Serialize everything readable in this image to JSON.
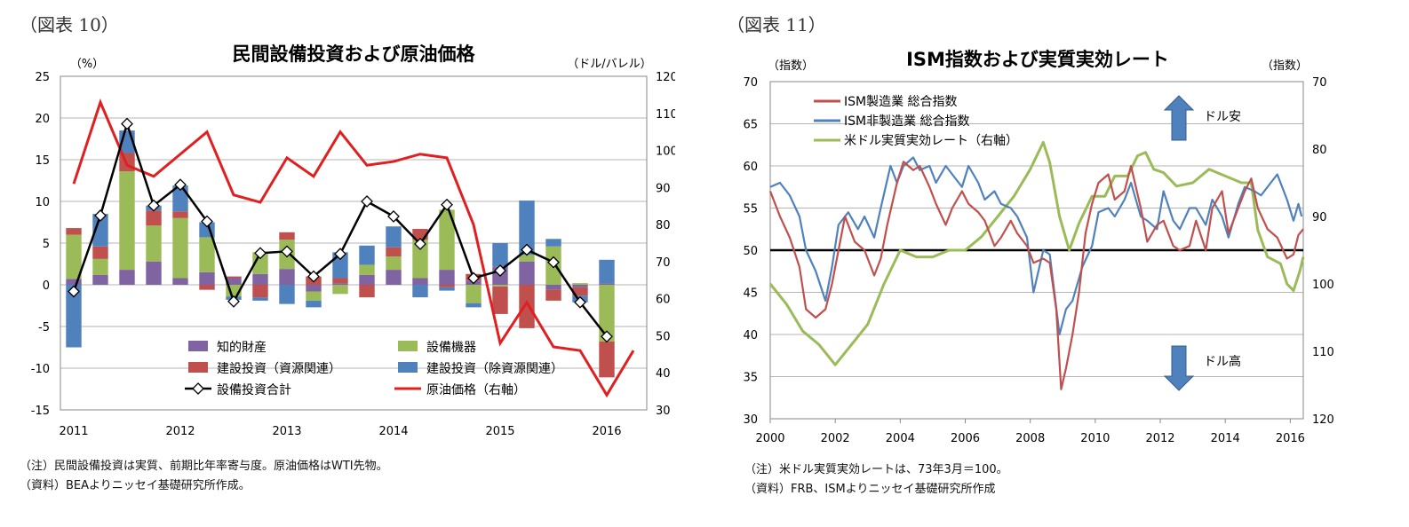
{
  "left_panel": {
    "figure_label": "（図表 10）",
    "notes": [
      "（注）民間設備投資は実質、前期比年率寄与度。原油価格はWTI先物。",
      "（資料）BEAよりニッセイ基礎研究所作成。"
    ]
  },
  "right_panel": {
    "figure_label": "（図表 11）",
    "notes": [
      "（注）米ドル実質実効レートは、73年3月＝100。",
      "（資料）FRB、ISMよりニッセイ基礎研究所作成"
    ]
  },
  "chart_data": [
    {
      "type": "bar",
      "title": "民間設備投資および原油価格",
      "ylabel": "（%）",
      "y2label": "（ドル/バレル）",
      "ylim": [
        -15,
        25
      ],
      "y2lim": [
        30,
        120
      ],
      "yticks": [
        25,
        20,
        15,
        10,
        5,
        0,
        -5,
        -10,
        -15
      ],
      "y2ticks": [
        120,
        110,
        100,
        90,
        80,
        70,
        60,
        50,
        40,
        30
      ],
      "x_tick_labels": [
        "2011",
        "2012",
        "2013",
        "2014",
        "2015",
        "2016"
      ],
      "quarters": [
        "2011Q1",
        "2011Q2",
        "2011Q3",
        "2011Q4",
        "2012Q1",
        "2012Q2",
        "2012Q3",
        "2012Q4",
        "2013Q1",
        "2013Q2",
        "2013Q3",
        "2013Q4",
        "2014Q1",
        "2014Q2",
        "2014Q3",
        "2014Q4",
        "2015Q1",
        "2015Q2",
        "2015Q3",
        "2015Q4",
        "2016Q1",
        "2016Q2"
      ],
      "series": [
        {
          "name": "知的財産",
          "kind": "bar",
          "color": "#8064a2",
          "values": [
            0.7,
            1.2,
            1.8,
            2.8,
            0.8,
            1.5,
            0.8,
            1.3,
            1.9,
            -0.8,
            0.2,
            1.2,
            1.8,
            0.8,
            1.8,
            0.5,
            2.2,
            2.8,
            -0.6,
            -0.3,
            0.2
          ]
        },
        {
          "name": "設備機器",
          "kind": "bar",
          "color": "#9bbb59",
          "values": [
            5.3,
            1.9,
            11.8,
            4.3,
            7.2,
            4.2,
            -1.4,
            2.6,
            3.5,
            -1.1,
            -1.1,
            1.2,
            1.6,
            4.6,
            7.2,
            -2.2,
            -0.2,
            0.8,
            4.6,
            0.2,
            -6.8
          ]
        },
        {
          "name": "建設投資（資源関連）",
          "kind": "bar",
          "color": "#c0504d",
          "values": [
            0.8,
            1.5,
            2.2,
            1.8,
            0.8,
            -0.6,
            0.2,
            -1.5,
            0.9,
            1.0,
            0.6,
            -1.5,
            1.1,
            1.3,
            -0.3,
            0.8,
            -3.3,
            -5.2,
            -1.3,
            -1.0,
            -4.3
          ]
        },
        {
          "name": "建設投資（除資源関連）",
          "kind": "bar",
          "color": "#4f81bd",
          "values": [
            -7.5,
            3.9,
            2.7,
            0.6,
            3.1,
            1.8,
            -0.4,
            -0.4,
            -2.3,
            -0.8,
            3.1,
            2.3,
            2.5,
            -1.5,
            -0.4,
            -0.5,
            2.8,
            6.5,
            0.9,
            -0.8,
            2.8
          ]
        },
        {
          "name": "設備投資合計",
          "kind": "line-marker",
          "color": "#000000",
          "values": [
            -0.8,
            8.3,
            19.3,
            9.5,
            12.0,
            7.6,
            -2.0,
            3.8,
            4.0,
            1.0,
            3.7,
            10.0,
            8.2,
            4.9,
            9.6,
            0.8,
            1.7,
            4.2,
            2.7,
            -2.1,
            -6.2
          ]
        },
        {
          "name": "原油価格（右軸）",
          "kind": "line",
          "color": "#e02020",
          "values": [
            91,
            113,
            96,
            93,
            99,
            105,
            88,
            86,
            98,
            93,
            105,
            96,
            97,
            99,
            98,
            80,
            48,
            59,
            47,
            46,
            34,
            46
          ]
        }
      ],
      "legend": [
        {
          "label": "知的財産",
          "color": "#8064a2",
          "kind": "bar"
        },
        {
          "label": "設備機器",
          "color": "#9bbb59",
          "kind": "bar"
        },
        {
          "label": "建設投資（資源関連）",
          "color": "#c0504d",
          "kind": "bar"
        },
        {
          "label": "建設投資（除資源関連）",
          "color": "#4f81bd",
          "kind": "bar"
        },
        {
          "label": "設備投資合計",
          "color": "#000000",
          "kind": "line-marker"
        },
        {
          "label": "原油価格（右軸）",
          "color": "#e02020",
          "kind": "line"
        }
      ],
      "legend_position": "lower-center"
    },
    {
      "type": "line",
      "title": "ISM指数および実質実効レート",
      "ylabel": "（指数）",
      "y2label": "（指数）",
      "ylim": [
        30,
        70
      ],
      "y2lim": [
        120,
        70
      ],
      "y2_inverted": true,
      "yticks": [
        70,
        65,
        60,
        55,
        50,
        45,
        40,
        35,
        30
      ],
      "y2ticks": [
        70,
        80,
        90,
        100,
        110,
        120
      ],
      "x_range": [
        2000,
        2016.4
      ],
      "x_tick_labels": [
        "2000",
        "2002",
        "2004",
        "2006",
        "2008",
        "2010",
        "2012",
        "2014",
        "2016"
      ],
      "reference_line": 50,
      "arrow_up_label": "ドル安",
      "arrow_down_label": "ドル高",
      "series": [
        {
          "name": "ISM製造業 総合指数",
          "color": "#c0504d",
          "points": [
            [
              2000.0,
              57.0
            ],
            [
              2000.3,
              54.0
            ],
            [
              2000.6,
              51.5
            ],
            [
              2000.9,
              48.0
            ],
            [
              2001.1,
              43.0
            ],
            [
              2001.4,
              42.0
            ],
            [
              2001.7,
              43.0
            ],
            [
              2001.9,
              46.0
            ],
            [
              2002.1,
              50.0
            ],
            [
              2002.3,
              54.0
            ],
            [
              2002.6,
              51.0
            ],
            [
              2002.9,
              50.0
            ],
            [
              2003.2,
              47.0
            ],
            [
              2003.4,
              49.0
            ],
            [
              2003.6,
              53.0
            ],
            [
              2003.9,
              58.0
            ],
            [
              2004.1,
              60.5
            ],
            [
              2004.4,
              59.5
            ],
            [
              2004.6,
              60.0
            ],
            [
              2004.9,
              57.5
            ],
            [
              2005.1,
              55.5
            ],
            [
              2005.4,
              53.0
            ],
            [
              2005.6,
              55.0
            ],
            [
              2005.9,
              57.0
            ],
            [
              2006.1,
              55.5
            ],
            [
              2006.4,
              54.5
            ],
            [
              2006.6,
              53.5
            ],
            [
              2006.9,
              50.5
            ],
            [
              2007.1,
              51.5
            ],
            [
              2007.4,
              53.5
            ],
            [
              2007.6,
              52.0
            ],
            [
              2007.9,
              50.5
            ],
            [
              2008.1,
              48.5
            ],
            [
              2008.4,
              49.0
            ],
            [
              2008.6,
              48.5
            ],
            [
              2008.8,
              43.0
            ],
            [
              2008.95,
              33.5
            ],
            [
              2009.1,
              36.0
            ],
            [
              2009.3,
              40.0
            ],
            [
              2009.5,
              45.0
            ],
            [
              2009.7,
              52.0
            ],
            [
              2009.9,
              55.5
            ],
            [
              2010.1,
              58.0
            ],
            [
              2010.4,
              59.0
            ],
            [
              2010.6,
              56.0
            ],
            [
              2010.9,
              57.0
            ],
            [
              2011.1,
              60.0
            ],
            [
              2011.4,
              55.0
            ],
            [
              2011.6,
              51.0
            ],
            [
              2011.9,
              53.0
            ],
            [
              2012.1,
              53.5
            ],
            [
              2012.4,
              50.5
            ],
            [
              2012.6,
              50.0
            ],
            [
              2012.9,
              50.5
            ],
            [
              2013.1,
              53.5
            ],
            [
              2013.4,
              50.0
            ],
            [
              2013.6,
              55.0
            ],
            [
              2013.9,
              57.0
            ],
            [
              2014.1,
              52.0
            ],
            [
              2014.4,
              55.0
            ],
            [
              2014.6,
              57.0
            ],
            [
              2014.8,
              58.5
            ],
            [
              2015.0,
              55.0
            ],
            [
              2015.3,
              52.5
            ],
            [
              2015.6,
              51.5
            ],
            [
              2015.9,
              49.0
            ],
            [
              2016.1,
              49.5
            ],
            [
              2016.25,
              51.8
            ],
            [
              2016.4,
              52.5
            ]
          ]
        },
        {
          "name": "ISM非製造業 総合指数",
          "color": "#4f81bd",
          "points": [
            [
              2000.0,
              57.5
            ],
            [
              2000.3,
              58.0
            ],
            [
              2000.6,
              56.5
            ],
            [
              2000.9,
              54.0
            ],
            [
              2001.1,
              50.0
            ],
            [
              2001.4,
              47.5
            ],
            [
              2001.7,
              44.0
            ],
            [
              2001.9,
              48.0
            ],
            [
              2002.1,
              53.0
            ],
            [
              2002.4,
              54.5
            ],
            [
              2002.7,
              52.5
            ],
            [
              2002.9,
              54.0
            ],
            [
              2003.2,
              51.5
            ],
            [
              2003.4,
              55.0
            ],
            [
              2003.7,
              60.0
            ],
            [
              2003.9,
              58.0
            ],
            [
              2004.1,
              60.0
            ],
            [
              2004.4,
              61.0
            ],
            [
              2004.6,
              59.5
            ],
            [
              2004.9,
              60.0
            ],
            [
              2005.1,
              58.0
            ],
            [
              2005.4,
              60.0
            ],
            [
              2005.6,
              59.0
            ],
            [
              2005.9,
              57.5
            ],
            [
              2006.1,
              60.0
            ],
            [
              2006.4,
              58.0
            ],
            [
              2006.6,
              56.0
            ],
            [
              2006.9,
              57.0
            ],
            [
              2007.1,
              55.5
            ],
            [
              2007.4,
              55.0
            ],
            [
              2007.6,
              54.0
            ],
            [
              2007.9,
              51.5
            ],
            [
              2008.1,
              45.0
            ],
            [
              2008.4,
              50.0
            ],
            [
              2008.6,
              49.5
            ],
            [
              2008.9,
              40.0
            ],
            [
              2009.1,
              43.0
            ],
            [
              2009.3,
              44.0
            ],
            [
              2009.6,
              48.0
            ],
            [
              2009.9,
              50.5
            ],
            [
              2010.1,
              54.5
            ],
            [
              2010.4,
              55.0
            ],
            [
              2010.6,
              54.0
            ],
            [
              2010.9,
              56.0
            ],
            [
              2011.1,
              58.0
            ],
            [
              2011.4,
              54.0
            ],
            [
              2011.6,
              53.5
            ],
            [
              2011.9,
              52.5
            ],
            [
              2012.1,
              57.0
            ],
            [
              2012.4,
              53.5
            ],
            [
              2012.6,
              52.5
            ],
            [
              2012.9,
              55.0
            ],
            [
              2013.1,
              55.0
            ],
            [
              2013.4,
              53.0
            ],
            [
              2013.6,
              56.0
            ],
            [
              2013.9,
              54.0
            ],
            [
              2014.1,
              51.5
            ],
            [
              2014.4,
              55.5
            ],
            [
              2014.6,
              57.5
            ],
            [
              2014.9,
              57.0
            ],
            [
              2015.1,
              56.5
            ],
            [
              2015.4,
              58.0
            ],
            [
              2015.6,
              59.0
            ],
            [
              2015.9,
              56.0
            ],
            [
              2016.1,
              53.5
            ],
            [
              2016.25,
              55.5
            ],
            [
              2016.35,
              54.0
            ]
          ]
        },
        {
          "name": "米ドル実質実効レート（右軸）",
          "color": "#9bbb59",
          "points": [
            [
              2000.0,
              100.0
            ],
            [
              2000.5,
              103.0
            ],
            [
              2001.0,
              107.0
            ],
            [
              2001.5,
              109.0
            ],
            [
              2002.0,
              112.0
            ],
            [
              2002.5,
              109.0
            ],
            [
              2003.0,
              106.0
            ],
            [
              2003.5,
              100.0
            ],
            [
              2004.0,
              95.0
            ],
            [
              2004.5,
              96.0
            ],
            [
              2005.0,
              96.0
            ],
            [
              2005.5,
              95.0
            ],
            [
              2006.0,
              95.0
            ],
            [
              2006.5,
              93.0
            ],
            [
              2007.0,
              90.0
            ],
            [
              2007.5,
              87.0
            ],
            [
              2008.0,
              83.0
            ],
            [
              2008.4,
              79.0
            ],
            [
              2008.6,
              82.0
            ],
            [
              2008.9,
              90.0
            ],
            [
              2009.2,
              95.0
            ],
            [
              2009.5,
              91.0
            ],
            [
              2009.9,
              87.0
            ],
            [
              2010.3,
              87.0
            ],
            [
              2010.6,
              84.0
            ],
            [
              2011.0,
              84.0
            ],
            [
              2011.3,
              81.0
            ],
            [
              2011.55,
              80.5
            ],
            [
              2011.8,
              83.0
            ],
            [
              2012.1,
              83.5
            ],
            [
              2012.5,
              85.5
            ],
            [
              2013.0,
              85.0
            ],
            [
              2013.5,
              83.0
            ],
            [
              2014.0,
              84.0
            ],
            [
              2014.5,
              85.0
            ],
            [
              2014.8,
              85.0
            ],
            [
              2015.0,
              92.0
            ],
            [
              2015.3,
              96.0
            ],
            [
              2015.7,
              97.0
            ],
            [
              2015.9,
              100.0
            ],
            [
              2016.1,
              101.0
            ],
            [
              2016.3,
              98.0
            ],
            [
              2016.4,
              96.0
            ]
          ]
        }
      ],
      "legend": [
        {
          "label": "ISM製造業 総合指数",
          "color": "#c0504d"
        },
        {
          "label": "ISM非製造業 総合指数",
          "color": "#4f81bd"
        },
        {
          "label": "米ドル実質実効レート（右軸）",
          "color": "#9bbb59"
        }
      ],
      "legend_position": "top-left"
    }
  ]
}
